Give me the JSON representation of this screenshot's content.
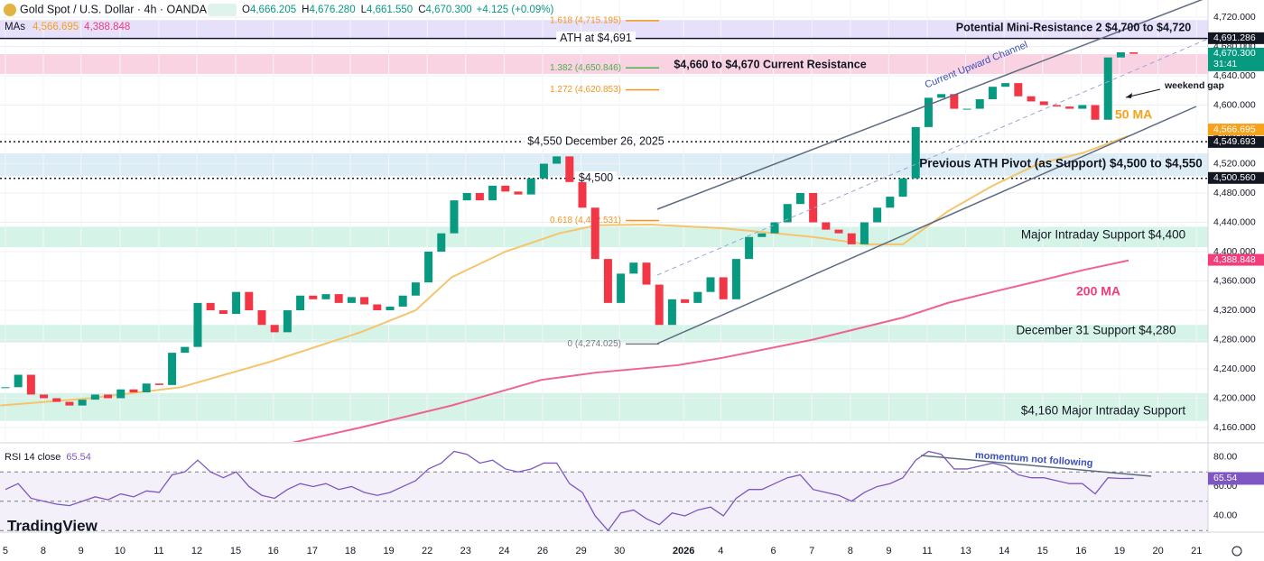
{
  "header": {
    "title": "Gold Spot / U.S. Dollar · 4h · OANDA",
    "ohlc": [
      {
        "key": "O",
        "value": "4,666.205"
      },
      {
        "key": "H",
        "value": "4,676.280"
      },
      {
        "key": "L",
        "value": "4,661.550"
      },
      {
        "key": "C",
        "value": "4,670.300"
      }
    ],
    "change": "+4.125 (+0.09%)",
    "ma_legend": "MAs"
  },
  "brand": "TradingView",
  "chart_data": {
    "type": "candlestick",
    "title": "Gold Spot / U.S. Dollar · 4h · OANDA",
    "x": [
      0,
      1,
      2,
      3,
      4,
      5,
      6,
      7,
      8,
      9,
      10,
      11,
      12,
      13,
      14,
      15,
      16,
      17,
      18,
      19,
      20,
      21,
      22,
      23,
      24,
      25,
      26,
      27,
      28,
      29,
      30,
      31,
      32,
      33,
      34,
      35,
      36,
      37,
      38,
      39,
      40,
      41,
      42,
      43,
      44,
      45,
      46,
      47,
      48,
      49,
      50,
      51,
      52,
      53,
      54,
      55,
      56,
      57,
      58,
      59,
      60,
      61,
      62,
      63,
      64,
      65,
      66,
      67,
      68,
      69,
      70,
      71,
      72,
      73,
      74,
      75,
      76,
      77,
      78,
      79,
      80,
      81,
      82,
      83,
      84,
      85,
      86,
      87,
      88
    ],
    "close": [
      4215,
      4232,
      4205,
      4200,
      4195,
      4190,
      4198,
      4205,
      4200,
      4212,
      4208,
      4220,
      4218,
      4262,
      4270,
      4330,
      4320,
      4315,
      4345,
      4320,
      4300,
      4290,
      4320,
      4340,
      4335,
      4342,
      4330,
      4338,
      4328,
      4320,
      4325,
      4340,
      4358,
      4400,
      4425,
      4470,
      4480,
      4470,
      4490,
      4482,
      4478,
      4500,
      4520,
      4530,
      4495,
      4460,
      4390,
      4330,
      4370,
      4385,
      4355,
      4300,
      4335,
      4330,
      4345,
      4365,
      4335,
      4390,
      4420,
      4425,
      4440,
      4465,
      4480,
      4440,
      4430,
      4425,
      4410,
      4440,
      4460,
      4475,
      4500,
      4570,
      4610,
      4615,
      4595,
      4595,
      4608,
      4625,
      4630,
      4612,
      4605,
      4600,
      4598,
      4595,
      4600,
      4580,
      4665,
      4672,
      4670
    ],
    "up_color": "#089981",
    "down_color": "#f23645",
    "xlim": [
      -0.42,
      93.8
    ],
    "xticks": [
      {
        "value": 0,
        "label": "5"
      },
      {
        "value": 2.96,
        "label": "8"
      },
      {
        "value": 5.9,
        "label": "9"
      },
      {
        "value": 8.94,
        "label": "10"
      },
      {
        "value": 11.97,
        "label": "11"
      },
      {
        "value": 14.93,
        "label": "12"
      },
      {
        "value": 17.96,
        "label": "15"
      },
      {
        "value": 20.9,
        "label": "16"
      },
      {
        "value": 23.94,
        "label": "17"
      },
      {
        "value": 26.9,
        "label": "18"
      },
      {
        "value": 29.9,
        "label": "19"
      },
      {
        "value": 32.9,
        "label": "22"
      },
      {
        "value": 35.9,
        "label": "23"
      },
      {
        "value": 38.9,
        "label": "24"
      },
      {
        "value": 41.9,
        "label": "26"
      },
      {
        "value": 44.9,
        "label": "29"
      },
      {
        "value": 47.9,
        "label": "30"
      },
      {
        "value": 52.9,
        "label": "2026"
      },
      {
        "value": 55.8,
        "label": "4"
      },
      {
        "value": 59.9,
        "label": "6"
      },
      {
        "value": 62.9,
        "label": "7"
      },
      {
        "value": 65.9,
        "label": "8"
      },
      {
        "value": 68.9,
        "label": "9"
      },
      {
        "value": 71.9,
        "label": "11"
      },
      {
        "value": 74.9,
        "label": "13"
      },
      {
        "value": 77.9,
        "label": "14"
      },
      {
        "value": 80.9,
        "label": "15"
      },
      {
        "value": 83.9,
        "label": "16"
      },
      {
        "value": 86.9,
        "label": "19"
      },
      {
        "value": 89.9,
        "label": "20"
      },
      {
        "value": 92.9,
        "label": "21"
      }
    ],
    "ylim": [
      4140.3,
      4743.4
    ],
    "yticks": [
      {
        "value": 4160,
        "label": "4,160.000"
      },
      {
        "value": 4200,
        "label": "4,200.000"
      },
      {
        "value": 4240,
        "label": "4,240.000"
      },
      {
        "value": 4280,
        "label": "4,280.000"
      },
      {
        "value": 4320,
        "label": "4,320.000"
      },
      {
        "value": 4360,
        "label": "4,360.000"
      },
      {
        "value": 4400,
        "label": "4,400.000"
      },
      {
        "value": 4440,
        "label": "4,440.000"
      },
      {
        "value": 4480,
        "label": "4,480.000"
      },
      {
        "value": 4520,
        "label": "4,520.000"
      },
      {
        "value": 4560,
        "label": "4,560.000"
      },
      {
        "value": 4600,
        "label": "4,600.000"
      },
      {
        "value": 4640,
        "label": "4,640.000"
      },
      {
        "value": 4680,
        "label": "4,680.000"
      },
      {
        "value": 4720,
        "label": "4,720.000"
      }
    ],
    "grid": true,
    "moving_averages": [
      {
        "color": "#f5c46b",
        "x": [
          -0.4,
          6.6,
          13.7,
          20.7,
          27.7,
          32,
          34.8,
          39,
          43.2,
          46.1,
          50.3,
          55.9,
          60.1,
          63,
          67.2,
          70,
          73.5,
          77,
          80.6,
          84.1,
          87.6
        ],
        "values": [
          4190,
          4200,
          4215,
          4250,
          4290,
          4320,
          4365,
          4400,
          4425,
          4436,
          4437,
          4432,
          4425,
          4420,
          4410,
          4410,
          4455,
          4490,
          4520,
          4535,
          4558
        ]
      },
      {
        "color": "#f0628f",
        "x": [
          21.8,
          27.7,
          34.8,
          41.8,
          46.1,
          52.4,
          55.9,
          63,
          70,
          73.5,
          77,
          80.6,
          84.1,
          87.6
        ],
        "values": [
          4137,
          4160,
          4190,
          4225,
          4235,
          4245,
          4255,
          4280,
          4310,
          4330,
          4345,
          4360,
          4375,
          4388
        ]
      }
    ],
    "price_labels": [
      {
        "value": 4691.286,
        "label": "4,691.286",
        "color": "#131722"
      },
      {
        "value": 4670.3,
        "label": "4,670.300",
        "color": "#089981"
      },
      {
        "value": 4566.695,
        "label": "4,566.695",
        "color": "#f7a21b"
      },
      {
        "value": 4549.693,
        "label": "4,549.693",
        "color": "#131722"
      },
      {
        "value": 4500.56,
        "label": "4,500.560",
        "color": "#131722"
      },
      {
        "value": 4388.848,
        "label": "4,388.848",
        "color": "#f23d7a"
      }
    ],
    "countdown": "31:41",
    "zones": [
      {
        "range": [
          4689,
          4716
        ],
        "color": "#e6e0fa",
        "label": "Potential Mini-Resistance 2 $4,700 to $4,720"
      },
      {
        "range": [
          4642.5,
          4669.5
        ],
        "color": "#fad3e2",
        "label": "$4,660 to $4,670 Current Resistance"
      },
      {
        "range": [
          4503,
          4534
        ],
        "color": "#dcedf6",
        "label": "Previous ATH Pivot (as Support) $4,500 to $4,550"
      },
      {
        "range": [
          4406,
          4434
        ],
        "color": "#d6f3e8",
        "label": "Major Intraday Support $4,400"
      },
      {
        "range": [
          4276,
          4300
        ],
        "color": "#d6f3e8",
        "label": "December 31 Support $4,280"
      },
      {
        "range": [
          4169,
          4207
        ],
        "color": "#d6f3e8",
        "label": "$4,160 Major Intraday Support"
      }
    ],
    "levels": [
      {
        "value": 4691,
        "label": "ATH at $4,691",
        "style": "solid"
      },
      {
        "value": 4550,
        "label": "$4,550 December 26, 2025",
        "style": "dotted"
      },
      {
        "value": 4500,
        "label": "$4,500",
        "style": "dotted"
      }
    ],
    "fib_levels": [
      {
        "value": 4715.195,
        "label": "1.618 (4,715.195)",
        "color": "#f7941d"
      },
      {
        "value": 4650.846,
        "label": "1.382 (4,650.846)",
        "color": "#4caf50"
      },
      {
        "value": 4620.853,
        "label": "1.272 (4,620.853)",
        "color": "#f7941d"
      },
      {
        "value": 4442.531,
        "label": "0.618 (4,442.531)",
        "color": "#f7941d"
      },
      {
        "value": 4274.025,
        "label": "0 (4,274.025)",
        "color": "#787b86"
      }
    ],
    "annotations": {
      "channel": "Current Upward Channel",
      "weekend_gap": "weekend gap",
      "ma50": "50 MA",
      "ma200": "200 MA",
      "momentum": "momentum not following"
    },
    "rsi": {
      "label": "RSI 14 close",
      "value_label": "65.54",
      "color": "#7e57c2",
      "ylim": [
        28.9,
        89.2
      ],
      "yticks": [
        {
          "value": 80,
          "label": "80.00"
        },
        {
          "value": 60,
          "label": "60.00"
        },
        {
          "value": 40,
          "label": "40.00"
        }
      ],
      "levels": [
        70,
        50,
        30
      ],
      "values": [
        58,
        62,
        52,
        50,
        48,
        47,
        50,
        53,
        51,
        55,
        53,
        57,
        56,
        68,
        70,
        78,
        70,
        66,
        70,
        60,
        54,
        52,
        58,
        62,
        60,
        62,
        58,
        60,
        56,
        54,
        56,
        60,
        64,
        72,
        76,
        84,
        82,
        76,
        78,
        72,
        70,
        72,
        76,
        76,
        62,
        56,
        40,
        30,
        42,
        44,
        38,
        34,
        42,
        40,
        44,
        46,
        40,
        52,
        58,
        58,
        62,
        66,
        68,
        58,
        56,
        54,
        50,
        56,
        60,
        62,
        66,
        78,
        84,
        82,
        72,
        72,
        74,
        76,
        74,
        68,
        66,
        66,
        64,
        62,
        62,
        55,
        66,
        65.5,
        65.54
      ]
    }
  }
}
